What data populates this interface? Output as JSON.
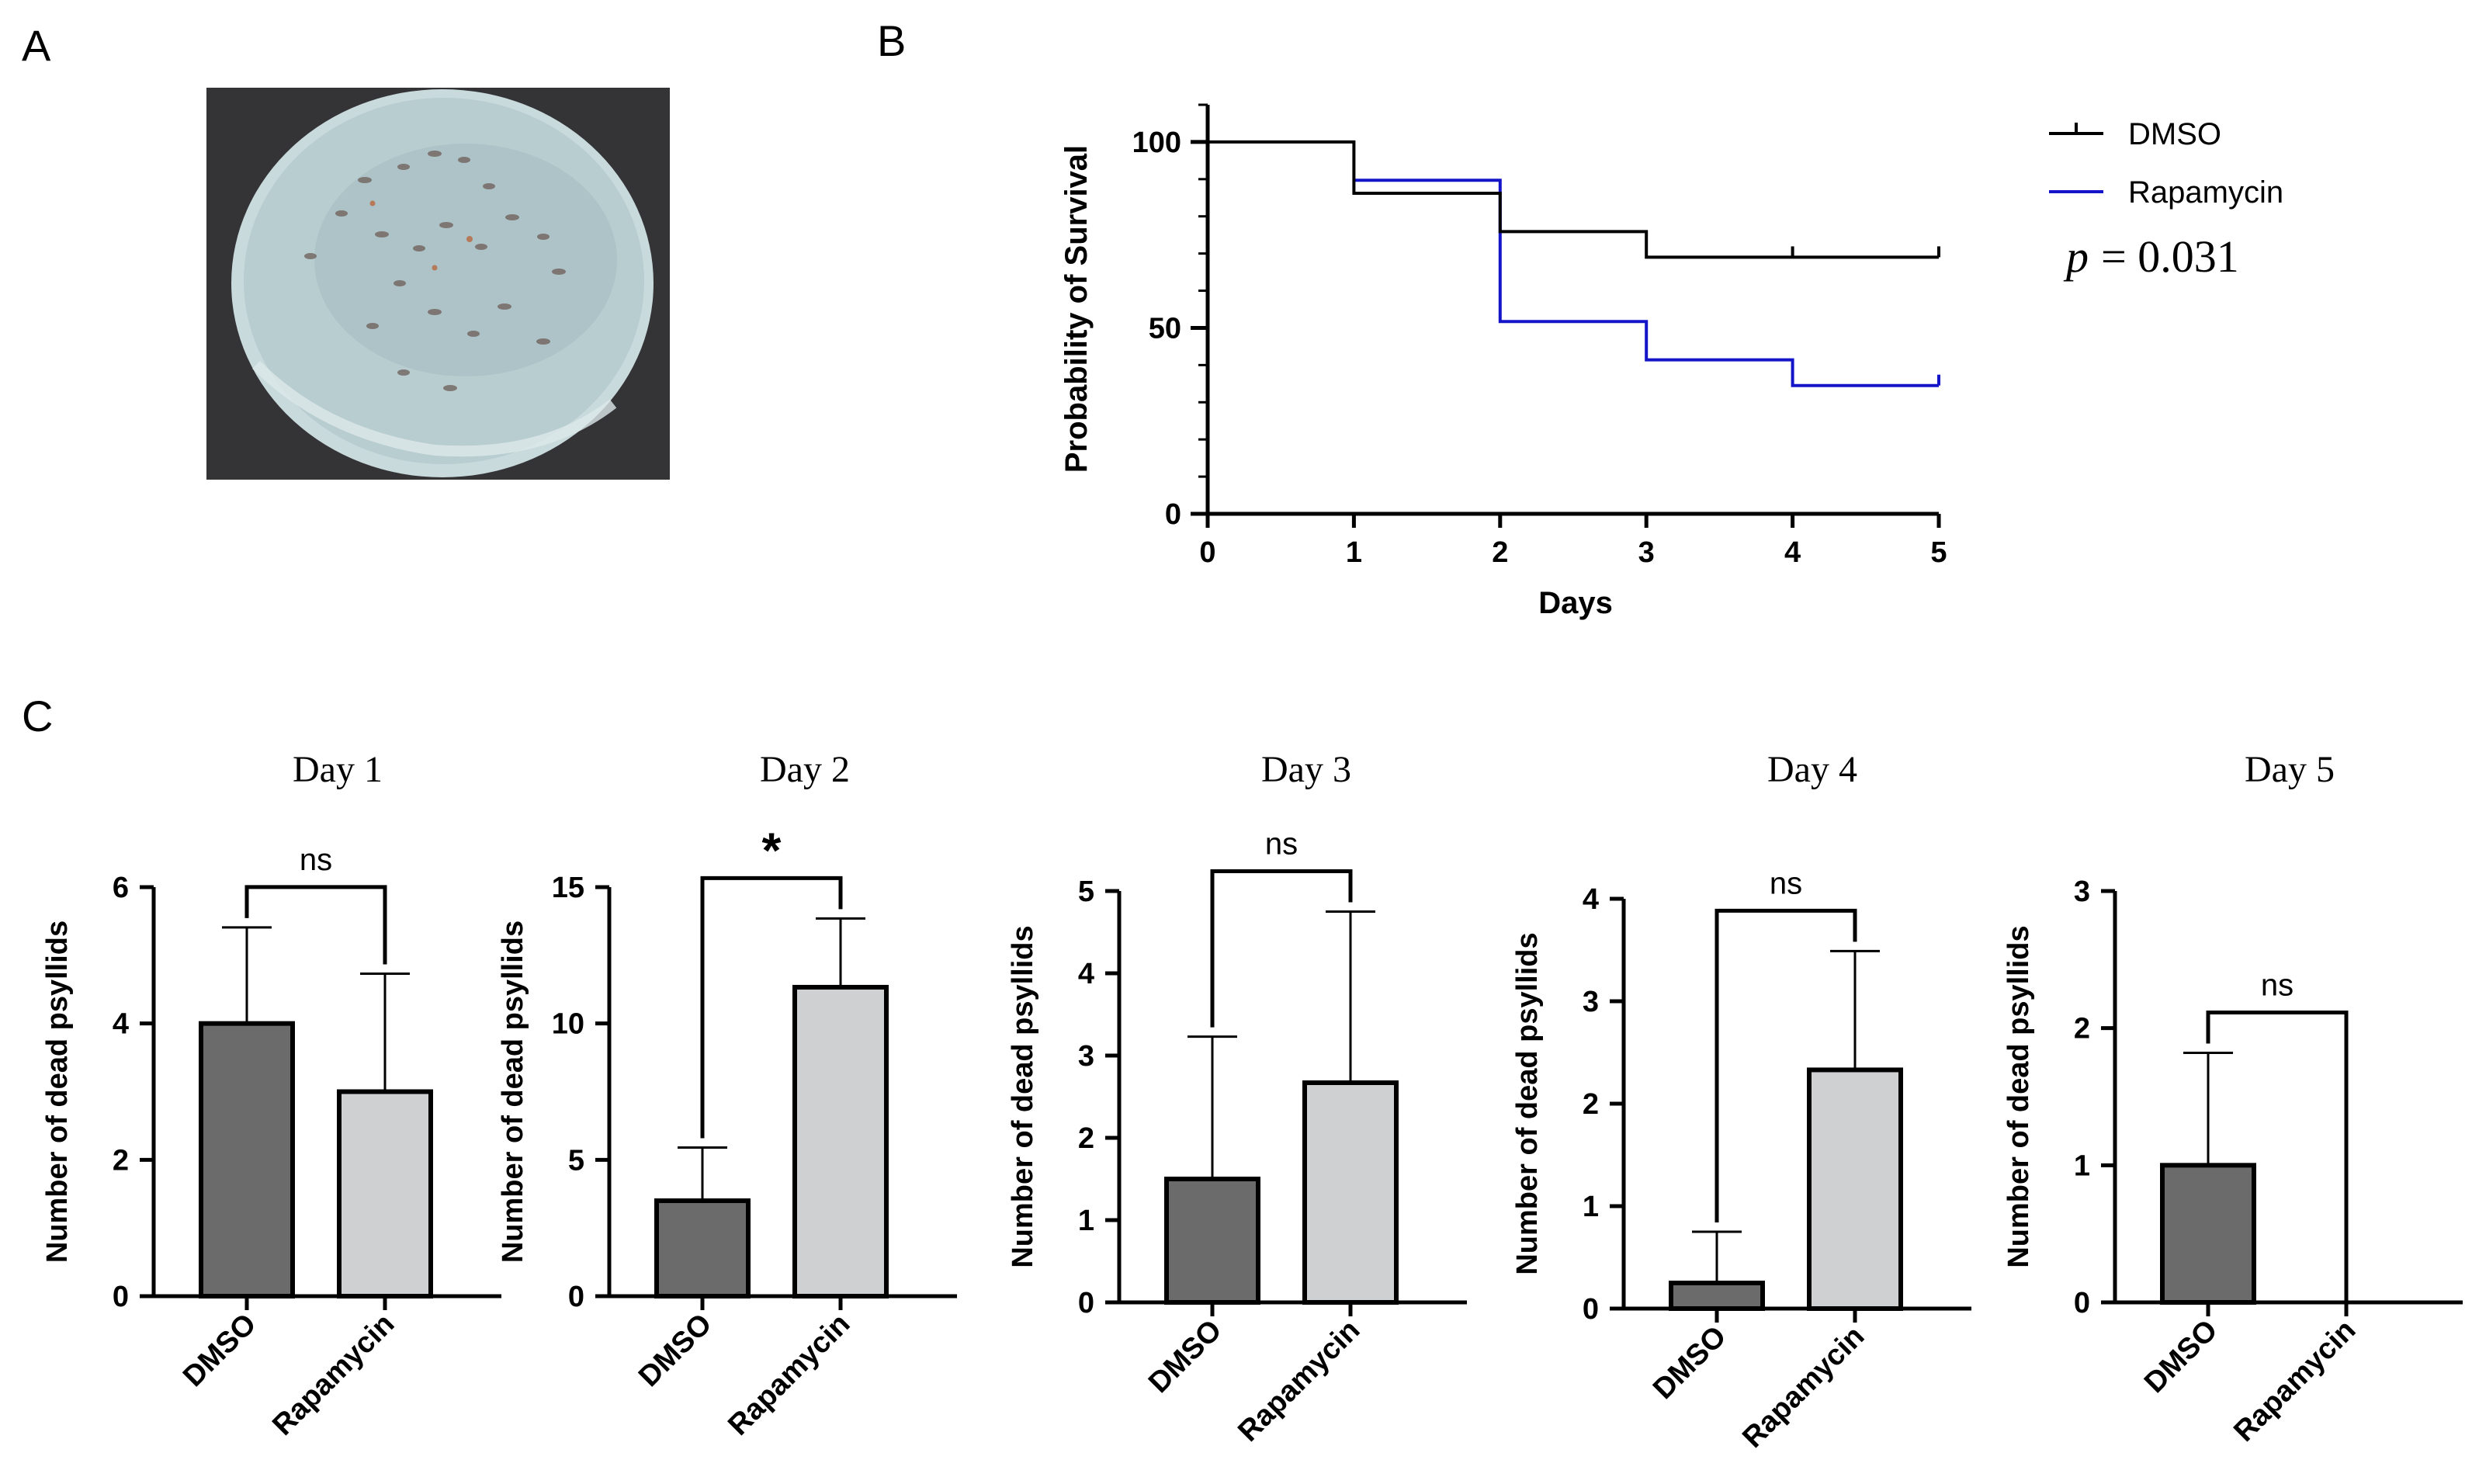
{
  "panels": {
    "a": {
      "label": "A"
    },
    "b": {
      "label": "B"
    },
    "c": {
      "label": "C"
    }
  },
  "photo": {
    "subject": "petri dish with psyllids"
  },
  "colors": {
    "dmso_line": "#000000",
    "rapamycin_line": "#1414c8",
    "dmso_bar": "#6b6b6b",
    "rapamycin_bar": "#cfd0d2"
  },
  "chart_data": [
    {
      "type": "line",
      "id": "survival",
      "title": "",
      "xlabel": "Days",
      "ylabel": "Probability of Survival",
      "xlim": [
        0,
        5
      ],
      "ylim": [
        0,
        110
      ],
      "xticks": [
        0,
        1,
        2,
        3,
        4,
        5
      ],
      "yticks": [
        0,
        50,
        100
      ],
      "legend_position": "right",
      "annotation": {
        "p_symbol": "p",
        "p_text": "= 0.031"
      },
      "series": [
        {
          "name": "DMSO",
          "step": [
            [
              0,
              100
            ],
            [
              1,
              100
            ],
            [
              1,
              86.2
            ],
            [
              2,
              86.2
            ],
            [
              2,
              75.9
            ],
            [
              3,
              75.9
            ],
            [
              3,
              69
            ],
            [
              5,
              69
            ]
          ],
          "censored": [
            [
              4,
              69
            ],
            [
              5,
              69
            ]
          ]
        },
        {
          "name": "Rapamycin",
          "step": [
            [
              1,
              89.7
            ],
            [
              2,
              89.7
            ],
            [
              2,
              51.7
            ],
            [
              3,
              51.7
            ],
            [
              3,
              41.4
            ],
            [
              4,
              41.4
            ],
            [
              4,
              34.5
            ],
            [
              5,
              34.5
            ]
          ],
          "censored": [
            [
              5,
              34.5
            ]
          ]
        }
      ]
    },
    {
      "type": "bar",
      "id": "day1",
      "title": "Day 1",
      "ylabel": "Number of dead psyllids",
      "categories": [
        "DMSO",
        "Rapamycin"
      ],
      "values": [
        4,
        3
      ],
      "errors": [
        1.41,
        1.73
      ],
      "ylim": [
        0,
        6
      ],
      "yticks": [
        0,
        2,
        4,
        6
      ],
      "significance": "ns"
    },
    {
      "type": "bar",
      "id": "day2",
      "title": "Day 2",
      "ylabel": "Number of dead psyllids",
      "categories": [
        "DMSO",
        "Rapamycin"
      ],
      "values": [
        3.5,
        11.33
      ],
      "errors": [
        1.95,
        2.52
      ],
      "ylim": [
        0,
        15
      ],
      "yticks": [
        0,
        5,
        10,
        15
      ],
      "significance": "*"
    },
    {
      "type": "bar",
      "id": "day3",
      "title": "Day 3",
      "ylabel": "Number of dead psyllids",
      "categories": [
        "DMSO",
        "Rapamycin"
      ],
      "values": [
        1.5,
        2.67
      ],
      "errors": [
        1.73,
        2.08
      ],
      "ylim": [
        0,
        5
      ],
      "yticks": [
        0,
        1,
        2,
        3,
        4,
        5
      ],
      "significance": "ns"
    },
    {
      "type": "bar",
      "id": "day4",
      "title": "Day 4",
      "ylabel": "Number of dead psyllids",
      "categories": [
        "DMSO",
        "Rapamycin"
      ],
      "values": [
        0.25,
        2.33
      ],
      "errors": [
        0.5,
        1.16
      ],
      "ylim": [
        0,
        4
      ],
      "yticks": [
        0,
        1,
        2,
        3,
        4
      ],
      "significance": "ns"
    },
    {
      "type": "bar",
      "id": "day5",
      "title": "Day 5",
      "ylabel": "Number of dead psyllids",
      "categories": [
        "DMSO",
        "Rapamycin"
      ],
      "values": [
        1,
        0
      ],
      "errors": [
        0.82,
        0
      ],
      "ylim": [
        0,
        3
      ],
      "yticks": [
        0,
        1,
        2,
        3
      ],
      "significance": "ns"
    }
  ]
}
